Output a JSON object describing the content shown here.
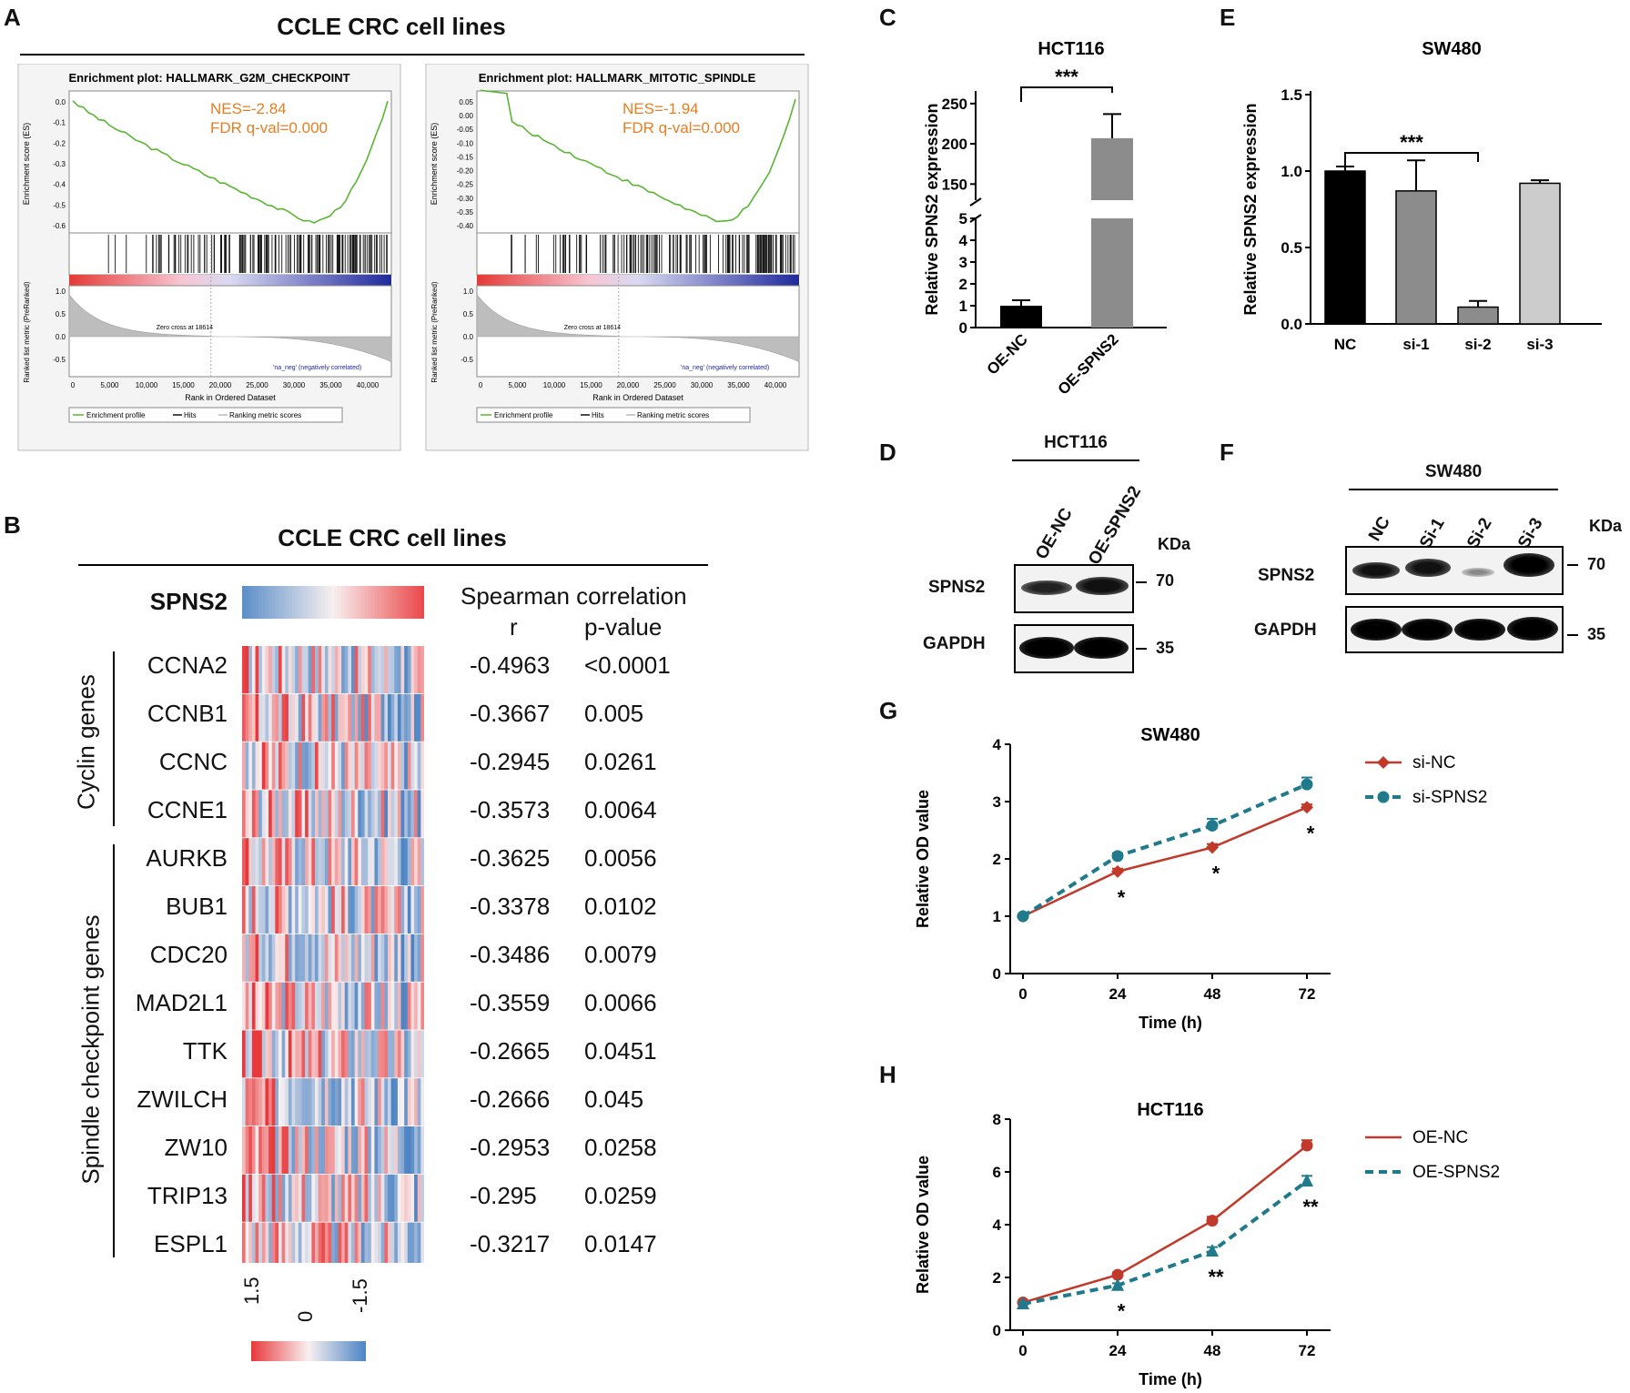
{
  "panels": {
    "A": {
      "label": "A",
      "title": "CCLE CRC cell lines",
      "plots": [
        {
          "title": "Enrichment plot: HALLMARK_G2M_CHECKPOINT",
          "nes": "NES=-2.84",
          "fdr": "FDR q-val=0.000",
          "es_label": "Enrichment score (ES)",
          "es_ticks": [
            "0.0",
            "-0.1",
            "-0.2",
            "-0.3",
            "-0.4",
            "-0.5",
            "-0.6"
          ],
          "rank_label": "Ranked list metric (PreRanked)",
          "rank_ticks": [
            "1.0",
            "0.5",
            "0.0",
            "-0.5"
          ],
          "pos_label": "'na_pos' (positively correlated)",
          "neg_label": "'na_neg' (negatively correlated)",
          "zero_cross": "Zero cross at 18614",
          "x_ticks": [
            "0",
            "5,000",
            "10,000",
            "15,000",
            "20,000",
            "25,000",
            "30,000",
            "35,000",
            "40,000"
          ],
          "x_label": "Rank in Ordered Dataset",
          "legend": [
            "Enrichment profile",
            "Hits",
            "Ranking metric scores"
          ]
        },
        {
          "title": "Enrichment plot: HALLMARK_MITOTIC_SPINDLE",
          "nes": "NES=-1.94",
          "fdr": "FDR q-val=0.000",
          "es_label": "Enrichment score (ES)",
          "es_ticks": [
            "0.05",
            "0.00",
            "-0.05",
            "-0.10",
            "-0.15",
            "-0.20",
            "-0.25",
            "-0.30",
            "-0.35",
            "-0.40"
          ],
          "rank_label": "Ranked list metric (PreRanked)",
          "rank_ticks": [
            "1.0",
            "0.5",
            "0.0",
            "-0.5"
          ],
          "pos_label": "'na_pos' (positively correlated)",
          "neg_label": "'na_neg' (negatively correlated)",
          "zero_cross": "Zero cross at 18614",
          "x_ticks": [
            "0",
            "5,000",
            "10,000",
            "15,000",
            "20,000",
            "25,000",
            "30,000",
            "35,000",
            "40,000"
          ],
          "x_label": "Rank in Ordered Dataset",
          "legend": [
            "Enrichment profile",
            "Hits",
            "Ranking metric scores"
          ]
        }
      ]
    },
    "B": {
      "label": "B",
      "title": "CCLE CRC cell lines",
      "spns2": "SPNS2",
      "head1": "Spearman correlation",
      "head_r": "r",
      "head_p": "p-value",
      "group1": "Cyclin genes",
      "group2": "Spindle checkpoint genes",
      "rows": [
        {
          "gene": "CCNA2",
          "r": "-0.4963",
          "p": "<0.0001"
        },
        {
          "gene": "CCNB1",
          "r": "-0.3667",
          "p": "0.005"
        },
        {
          "gene": "CCNC",
          "r": "-0.2945",
          "p": "0.0261"
        },
        {
          "gene": "CCNE1",
          "r": "-0.3573",
          "p": "0.0064"
        },
        {
          "gene": "AURKB",
          "r": "-0.3625",
          "p": "0.0056"
        },
        {
          "gene": "BUB1",
          "r": "-0.3378",
          "p": "0.0102"
        },
        {
          "gene": "CDC20",
          "r": "-0.3486",
          "p": "0.0079"
        },
        {
          "gene": "MAD2L1",
          "r": "-0.3559",
          "p": "0.0066"
        },
        {
          "gene": "TTK",
          "r": "-0.2665",
          "p": "0.0451"
        },
        {
          "gene": "ZWILCH",
          "r": "-0.2666",
          "p": "0.045"
        },
        {
          "gene": "ZW10",
          "r": "-0.2953",
          "p": "0.0258"
        },
        {
          "gene": "TRIP13",
          "r": "-0.295",
          "p": "0.0259"
        },
        {
          "gene": "ESPL1",
          "r": "-0.3217",
          "p": "0.0147"
        }
      ],
      "scale": [
        "1.5",
        "0",
        "-1.5"
      ]
    },
    "D": {
      "label": "D",
      "cell": "HCT116",
      "lanes": [
        "OE-NC",
        "OE-SPNS2"
      ],
      "kda": "KDa",
      "bands": [
        "SPNS2",
        "GAPDH"
      ],
      "markers": [
        "70",
        "35"
      ]
    },
    "F": {
      "label": "F",
      "cell": "SW480",
      "lanes": [
        "NC",
        "Si-1",
        "Si-2",
        "Si-3"
      ],
      "kda": "KDa",
      "bands": [
        "SPNS2",
        "GAPDH"
      ],
      "markers": [
        "70",
        "35"
      ]
    },
    "G": {
      "label": "G"
    },
    "H": {
      "label": "H"
    },
    "C": {
      "label": "C",
      "break_ticks": [
        "150",
        "200",
        "250"
      ]
    },
    "E": {
      "label": "E"
    }
  },
  "chart_data": [
    {
      "id": "C",
      "type": "bar",
      "title": "HCT116",
      "categories": [
        "OE-NC",
        "OE-SPNS2"
      ],
      "values": [
        1,
        207
      ],
      "errors": [
        0.25,
        30
      ],
      "colors": [
        "#000000",
        "#8c8c8c"
      ],
      "ylabel": "Relative SPNS2 expression",
      "ylim_lower": [
        0,
        5
      ],
      "ylim_upper": [
        130,
        260
      ],
      "y_ticks_lower": [
        "0",
        "1",
        "2",
        "3",
        "4",
        "5"
      ],
      "y_ticks_upper": [
        "150",
        "200",
        "250"
      ],
      "annotation": "***"
    },
    {
      "id": "E",
      "type": "bar",
      "title": "SW480",
      "categories": [
        "NC",
        "si-1",
        "si-2",
        "si-3"
      ],
      "values": [
        1.0,
        0.87,
        0.11,
        0.92
      ],
      "errors": [
        0.03,
        0.2,
        0.04,
        0.02
      ],
      "colors": [
        "#000000",
        "#8c8c8c",
        "#8c8c8c",
        "#cccccc"
      ],
      "ylabel": "Relative SPNS2 expression",
      "ylim": [
        0,
        1.5
      ],
      "y_ticks": [
        "0.0",
        "0.5",
        "1.0",
        "1.5"
      ],
      "annotation": "***"
    },
    {
      "id": "G",
      "type": "line",
      "title": "SW480",
      "x": [
        0,
        24,
        48,
        72
      ],
      "x_ticks": [
        "0",
        "24",
        "48",
        "72"
      ],
      "y_ticks": [
        "0",
        "1",
        "2",
        "3",
        "4"
      ],
      "ylim": [
        0,
        4
      ],
      "xlabel": "Time (h)",
      "ylabel": "Relative OD value",
      "series": [
        {
          "name": "si-NC",
          "values": [
            1.0,
            1.78,
            2.2,
            2.9
          ],
          "errors": [
            0.03,
            0.05,
            0.06,
            0.05
          ],
          "color": "#c0392b",
          "dash": false,
          "marker": "diamond"
        },
        {
          "name": "si-SPNS2",
          "values": [
            1.0,
            2.05,
            2.58,
            3.3
          ],
          "errors": [
            0.03,
            0.05,
            0.12,
            0.12
          ],
          "color": "#1f7a8c",
          "dash": true,
          "marker": "circle"
        }
      ],
      "annotations": [
        {
          "x": 24,
          "text": "*"
        },
        {
          "x": 48,
          "text": "*"
        },
        {
          "x": 72,
          "text": "*"
        }
      ]
    },
    {
      "id": "H",
      "type": "line",
      "title": "HCT116",
      "x": [
        0,
        24,
        48,
        72
      ],
      "x_ticks": [
        "0",
        "24",
        "48",
        "72"
      ],
      "y_ticks": [
        "0",
        "2",
        "4",
        "6",
        "8"
      ],
      "ylim": [
        0,
        8
      ],
      "xlabel": "Time (h)",
      "ylabel": "Relative OD value",
      "series": [
        {
          "name": "OE-NC",
          "values": [
            1.05,
            2.1,
            4.15,
            7.0
          ],
          "errors": [
            0.05,
            0.08,
            0.15,
            0.2
          ],
          "color": "#c0392b",
          "dash": false,
          "marker": "circle"
        },
        {
          "name": "OE-SPNS2",
          "values": [
            1.0,
            1.7,
            3.0,
            5.65
          ],
          "errors": [
            0.05,
            0.08,
            0.15,
            0.2
          ],
          "color": "#1f7a8c",
          "dash": true,
          "marker": "triangle"
        }
      ],
      "annotations": [
        {
          "x": 24,
          "text": "*"
        },
        {
          "x": 48,
          "text": "**"
        },
        {
          "x": 72,
          "text": "**"
        }
      ]
    }
  ]
}
